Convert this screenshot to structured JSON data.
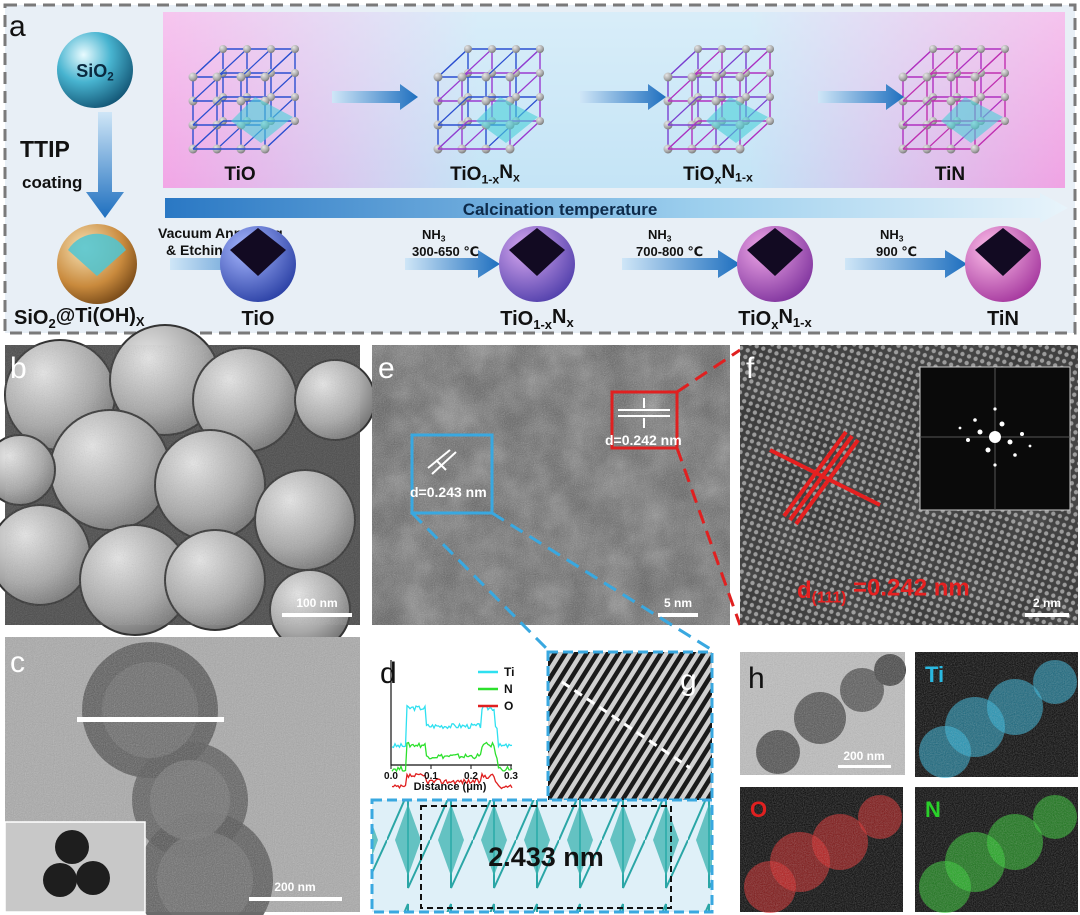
{
  "labels": [
    "a",
    "b",
    "c",
    "d",
    "e",
    "f",
    "g",
    "h"
  ],
  "a": {
    "sio2": [
      "SiO",
      "2"
    ],
    "ttip": "TTIP",
    "coating": "coating",
    "precursor": [
      "SiO",
      "2",
      "@Ti(OH)",
      "X"
    ],
    "phases_top": [
      [
        "TiO"
      ],
      [
        "TiO",
        "1-x",
        "N",
        "x"
      ],
      [
        "TiO",
        "x",
        "N",
        "1-x"
      ],
      [
        "TiN"
      ]
    ],
    "calcination": "Calcination temperature",
    "step1": [
      "Vacuum Annealing",
      "& Etching"
    ],
    "steps": [
      {
        "gas": [
          "NH",
          "3"
        ],
        "temp": "300-650 ℃"
      },
      {
        "gas": [
          "NH",
          "3"
        ],
        "temp": "700-800 ℃"
      },
      {
        "gas": [
          "NH",
          "3"
        ],
        "temp": "900 ℃"
      }
    ],
    "phases_bottom": [
      [
        "TiO"
      ],
      [
        "TiO",
        "1-x",
        "N",
        "x"
      ],
      [
        "TiO",
        "x",
        "N",
        "1-x"
      ],
      [
        "TiN"
      ]
    ]
  },
  "b": {
    "scale": "100 nm"
  },
  "c": {
    "scale": "200 nm"
  },
  "d": {
    "legend": [
      {
        "name": "Ti",
        "color": "#2ee0f0"
      },
      {
        "name": "N",
        "color": "#2ce02c"
      },
      {
        "name": "O",
        "color": "#e02020"
      }
    ],
    "xticks": [
      "0.0",
      "0.1",
      "0.2",
      "0.3"
    ],
    "xlabel": "Distance (μm)"
  },
  "e": {
    "scale": "5 nm",
    "d1": "d=0.243 nm",
    "d2": "d=0.242 nm"
  },
  "f": {
    "scale": "2 nm",
    "spacing": [
      "d",
      "(111)",
      " =0.242 nm"
    ]
  },
  "g": {
    "measure": "2.433 nm"
  },
  "h": {
    "scale": "200 nm",
    "maps": [
      {
        "label": "Ti",
        "color": "#2ab8e0"
      },
      {
        "label": "O",
        "color": "#e02020"
      },
      {
        "label": "N",
        "color": "#2ad02a"
      }
    ]
  }
}
